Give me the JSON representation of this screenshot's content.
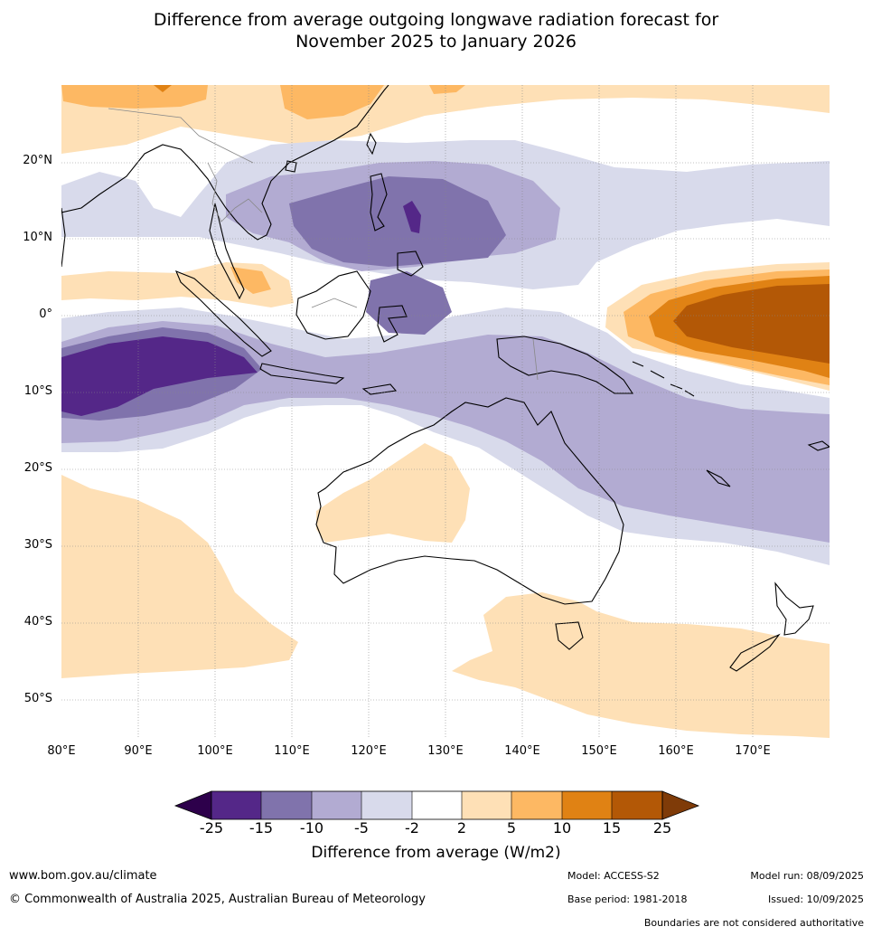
{
  "title": {
    "line1": "Difference from average outgoing longwave radiation forecast for",
    "line2": "November 2025 to January 2026"
  },
  "lat_labels": [
    "20°N",
    "10°N",
    "0°",
    "10°S",
    "20°S",
    "30°S",
    "40°S",
    "50°S"
  ],
  "lon_labels": [
    "80°E",
    "90°E",
    "100°E",
    "110°E",
    "120°E",
    "130°E",
    "140°E",
    "150°E",
    "160°E",
    "170°E"
  ],
  "colorbar": {
    "ticks": [
      "-25",
      "-15",
      "-10",
      "-5",
      "-2",
      "2",
      "5",
      "10",
      "15",
      "25"
    ],
    "colors": [
      "#2d004b",
      "#542788",
      "#8073ac",
      "#b2abd2",
      "#d8daeb",
      "#ffffff",
      "#fee0b6",
      "#fdb863",
      "#e08214",
      "#b35806",
      "#7f3b08"
    ],
    "label": "Difference from average (W/m2)"
  },
  "footer": {
    "url": "www.bom.gov.au/climate",
    "copyright": "© Commonwealth of Australia 2025, Australian Bureau of Meteorology",
    "model": "Model: ACCESS-S2",
    "base_period": "Base period: 1981-2018",
    "model_run": "Model run: 08/09/2025",
    "issued": "Issued: 10/09/2025",
    "disclaimer": "Boundaries are not considered authoritative"
  }
}
